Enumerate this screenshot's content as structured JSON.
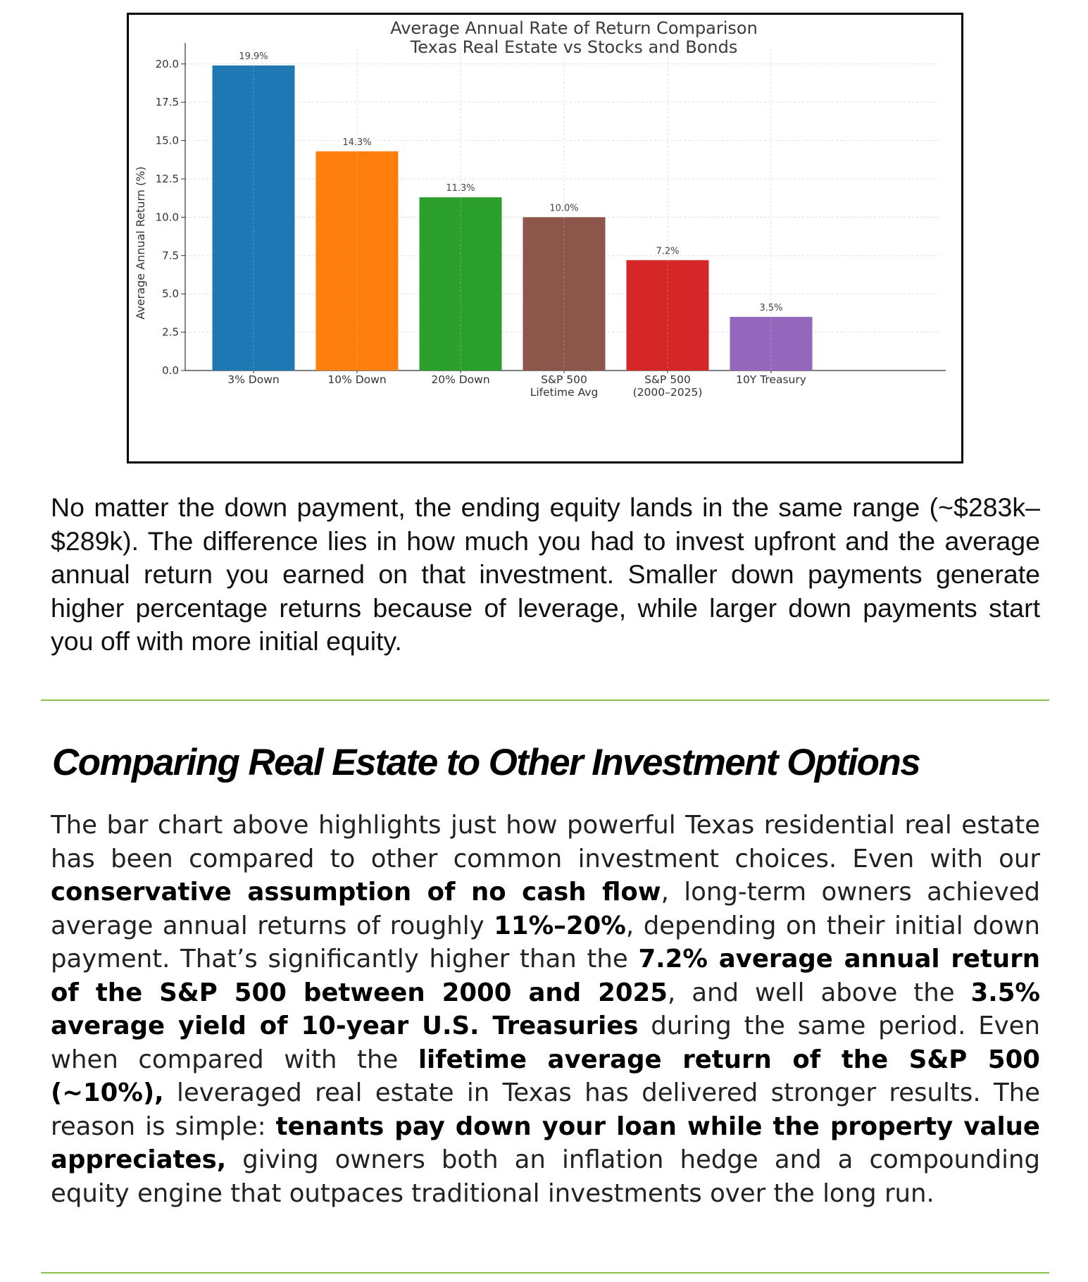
{
  "chart_data": {
    "type": "bar",
    "title": "Average Annual Rate of Return Comparison",
    "subtitle": "Texas Real Estate vs Stocks and Bonds",
    "ylabel": "Average Annual Return (%)",
    "xlabel": "",
    "ylim": [
      0,
      21
    ],
    "yticks": [
      "0.0",
      "2.5",
      "5.0",
      "7.5",
      "10.0",
      "12.5",
      "15.0",
      "17.5",
      "20.0"
    ],
    "grid": true,
    "bars": [
      {
        "category_lines": [
          "3% Down"
        ],
        "value": 19.9,
        "label": "19.9%",
        "color": "#1f77b4"
      },
      {
        "category_lines": [
          "10% Down"
        ],
        "value": 14.3,
        "label": "14.3%",
        "color": "#ff7f0e"
      },
      {
        "category_lines": [
          "20% Down"
        ],
        "value": 11.3,
        "label": "11.3%",
        "color": "#2ca02c"
      },
      {
        "category_lines": [
          "S&P 500",
          "Lifetime Avg"
        ],
        "value": 10.0,
        "label": "10.0%",
        "color": "#8c564b"
      },
      {
        "category_lines": [
          "S&P 500",
          "(2000–2025)"
        ],
        "value": 7.2,
        "label": "7.2%",
        "color": "#d62728"
      },
      {
        "category_lines": [
          "10Y Treasury"
        ],
        "value": 3.5,
        "label": "3.5%",
        "color": "#9467bd"
      }
    ]
  },
  "intro": {
    "text": "No matter the down payment, the ending equity lands in the same range (~$283k–$289k). The difference lies in how much you had to invest upfront and the average annual return you earned on that investment. Smaller down payments generate higher percentage returns because of leverage, while larger down payments start you off with more initial equity."
  },
  "section": {
    "heading": "Comparing Real Estate to Other Investment Options",
    "body": {
      "p1": "The bar chart above highlights just how powerful Texas residential real estate has been compared to other common investment choices. Even with our ",
      "b1": "conservative assumption of no cash flow",
      "p2": ", long-term owners achieved average annual returns of roughly ",
      "b2": "11%–20%",
      "p3": ", depending on their initial down payment. That’s significantly higher than the ",
      "b3": "7.2% average annual return of the S&P 500 between 2000 and 2025",
      "p4": ", and well above the ",
      "b4": "3.5% average yield of 10-year U.S. Treasuries",
      "p5": " during the same period. Even when compared with the ",
      "b5": "lifetime average return of the S&P 500 (~10%),",
      "p6": " leveraged real estate in Texas has delivered stronger results. The reason is simple: ",
      "b6": "tenants pay down your loan while the property value appreciates,",
      "p7": " giving owners both an inflation hedge and a compounding equity engine that outpaces traditional investments over the long run."
    }
  }
}
